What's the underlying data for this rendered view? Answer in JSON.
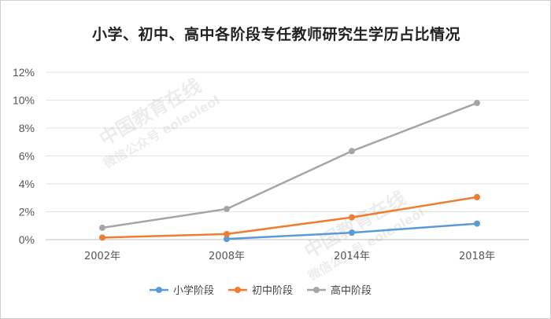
{
  "chart_data": {
    "type": "line",
    "title": "小学、初中、高中各阶段专任教师研究生学历占比情况",
    "categories": [
      "2002年",
      "2008年",
      "2014年",
      "2018年"
    ],
    "y_ticks": [
      "0%",
      "2%",
      "4%",
      "6%",
      "8%",
      "10%",
      "12%"
    ],
    "ylim": [
      0,
      12
    ],
    "grid": true,
    "legend": "bottom",
    "series": [
      {
        "name": "小学阶段",
        "color": "#5B9BD5",
        "values": [
          null,
          0.05,
          0.5,
          1.15
        ]
      },
      {
        "name": "初中阶段",
        "color": "#ED7D31",
        "values": [
          0.15,
          0.4,
          1.6,
          3.05
        ]
      },
      {
        "name": "高中阶段",
        "color": "#A5A5A5",
        "values": [
          0.85,
          2.2,
          6.35,
          9.8
        ]
      }
    ]
  },
  "watermark": {
    "line1": "中国教育在线",
    "line2": "微信公众号 eoleoleol"
  }
}
